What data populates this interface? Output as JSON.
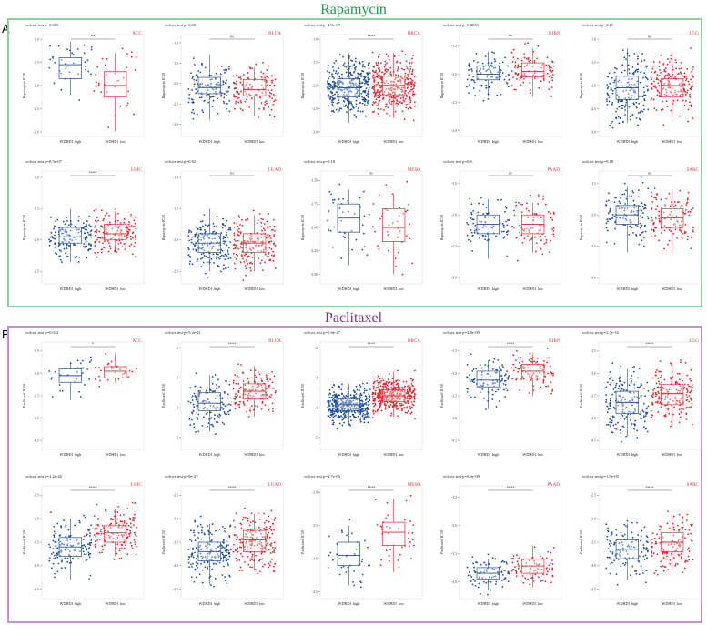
{
  "figure": {
    "panel_a": {
      "letter": "A",
      "title": "Rapamycin",
      "title_color": "#1c9a4a",
      "frame_color": "#8fd19e"
    },
    "panel_b": {
      "letter": "B",
      "title": "Paclitaxel",
      "title_color": "#7b2f8e",
      "frame_color": "#c58fd1"
    }
  },
  "colors": {
    "high": "#1f4e9c",
    "low": "#e3262d",
    "ns_text": "#333333",
    "cancer_label": "#e3262d"
  },
  "groups": [
    "WDHD1 high",
    "WDHD1 low"
  ],
  "chart_data": [
    {
      "type": "box",
      "panel": "A",
      "cancer": "ACC",
      "pvalue": "wilcox.test p=0.009",
      "sig": "**",
      "ylabel": "Rapamycin IC50",
      "yticks": [
        "-1.0",
        "-1.5",
        "-2.0",
        "-2.5",
        "-3.0"
      ],
      "ylim": [
        -3.1,
        -0.9
      ],
      "n": [
        35,
        35
      ],
      "boxes": [
        {
          "q1": -1.85,
          "med": -1.55,
          "q3": -1.4,
          "lo": -2.2,
          "hi": -1.05
        },
        {
          "q1": -2.25,
          "med": -2.0,
          "q3": -1.7,
          "lo": -3.0,
          "hi": -1.3
        }
      ]
    },
    {
      "type": "box",
      "panel": "A",
      "cancer": "BLCA",
      "pvalue": "wilcox.test p=0.68",
      "sig": "ns",
      "ylabel": "Rapamycin IC50",
      "yticks": [
        "-1.0",
        "-1.5",
        "-2.0",
        "-2.5",
        "-3.0"
      ],
      "ylim": [
        -3.3,
        -0.8
      ],
      "n": [
        130,
        130
      ],
      "boxes": [
        {
          "q1": -2.25,
          "med": -2.1,
          "q3": -1.85,
          "lo": -2.9,
          "hi": -1.3
        },
        {
          "q1": -2.3,
          "med": -2.15,
          "q3": -1.9,
          "lo": -2.8,
          "hi": -1.6
        }
      ]
    },
    {
      "type": "box",
      "panel": "A",
      "cancer": "BRCA",
      "pvalue": "wilcox.test p=1.9e-07",
      "sig": "****",
      "ylabel": "Rapamycin IC50",
      "yticks": [
        "-1.0",
        "-1.5",
        "-2.0",
        "-2.5",
        "-3.0"
      ],
      "ylim": [
        -3.1,
        -0.9
      ],
      "n": [
        350,
        350
      ],
      "boxes": [
        {
          "q1": -2.25,
          "med": -2.05,
          "q3": -1.85,
          "lo": -2.8,
          "hi": -1.3
        },
        {
          "q1": -2.2,
          "med": -2.0,
          "q3": -1.8,
          "lo": -2.7,
          "hi": -1.3
        }
      ]
    },
    {
      "type": "box",
      "panel": "A",
      "cancer": "KIRP",
      "pvalue": "wilcox.test p=0.0035",
      "sig": "**",
      "ylabel": "Rapamycin IC50",
      "yticks": [
        "-1.5",
        "-2.0",
        "-2.5",
        "-3.0"
      ],
      "ylim": [
        -3.1,
        -1.3
      ],
      "n": [
        100,
        100
      ],
      "boxes": [
        {
          "q1": -2.1,
          "med": -2.0,
          "q3": -1.85,
          "lo": -2.4,
          "hi": -1.6
        },
        {
          "q1": -2.05,
          "med": -1.95,
          "q3": -1.8,
          "lo": -2.4,
          "hi": -1.55
        }
      ]
    },
    {
      "type": "box",
      "panel": "A",
      "cancer": "LGG",
      "pvalue": "wilcox.test p=0.15",
      "sig": "ns",
      "ylabel": "Rapamycin IC50",
      "yticks": [
        "-1.0",
        "-1.5",
        "-2.0",
        "-2.5",
        "-3.0"
      ],
      "ylim": [
        -3.1,
        -0.9
      ],
      "n": [
        180,
        180
      ],
      "boxes": [
        {
          "q1": -2.3,
          "med": -2.05,
          "q3": -1.8,
          "lo": -2.8,
          "hi": -1.2
        },
        {
          "q1": -2.25,
          "med": -2.0,
          "q3": -1.85,
          "lo": -2.7,
          "hi": -1.3
        }
      ]
    },
    {
      "type": "box",
      "panel": "A",
      "cancer": "LIHC",
      "pvalue": "wilcox.test p=8.5e-07",
      "sig": "****",
      "ylabel": "Rapamycin IC50",
      "yticks": [
        "-1.0",
        "-1.5",
        "-2.0",
        "-2.5"
      ],
      "ylim": [
        -2.7,
        -0.9
      ],
      "n": [
        150,
        150
      ],
      "boxes": [
        {
          "q1": -2.05,
          "med": -1.95,
          "q3": -1.8,
          "lo": -2.35,
          "hi": -1.5
        },
        {
          "q1": -2.0,
          "med": -1.9,
          "q3": -1.75,
          "lo": -2.2,
          "hi": -1.55
        }
      ]
    },
    {
      "type": "box",
      "panel": "A",
      "cancer": "LUAD",
      "pvalue": "wilcox.test p=0.82",
      "sig": "ns",
      "ylabel": "Rapamycin IC50",
      "yticks": [
        "-1.0",
        "-1.5",
        "-2.0",
        "-2.5"
      ],
      "ylim": [
        -2.7,
        -0.9
      ],
      "n": [
        190,
        190
      ],
      "boxes": [
        {
          "q1": -2.2,
          "med": -2.05,
          "q3": -1.9,
          "lo": -2.5,
          "hi": -1.5
        },
        {
          "q1": -2.2,
          "med": -2.05,
          "q3": -1.9,
          "lo": -2.5,
          "hi": -1.6
        }
      ]
    },
    {
      "type": "box",
      "panel": "A",
      "cancer": "MESO",
      "pvalue": "wilcox.test p=0.18",
      "sig": "ns",
      "ylabel": "Rapamycin IC50",
      "yticks": [
        "-1.50",
        "-1.75",
        "-2.00",
        "-2.25",
        "-2.50"
      ],
      "ylim": [
        -2.6,
        -1.4
      ],
      "n": [
        40,
        40
      ],
      "boxes": [
        {
          "q1": -2.05,
          "med": -1.9,
          "q3": -1.75,
          "lo": -2.4,
          "hi": -1.6
        },
        {
          "q1": -2.15,
          "med": -2.0,
          "q3": -1.8,
          "lo": -2.5,
          "hi": -1.65
        }
      ]
    },
    {
      "type": "box",
      "panel": "A",
      "cancer": "PAAD",
      "pvalue": "wilcox.test p=0.6",
      "sig": "ns",
      "ylabel": "Rapamycin IC50",
      "yticks": [
        "-1.5",
        "-2.0",
        "-2.5",
        "-3.0"
      ],
      "ylim": [
        -3.1,
        -1.3
      ],
      "n": [
        85,
        85
      ],
      "boxes": [
        {
          "q1": -2.3,
          "med": -2.15,
          "q3": -2.0,
          "lo": -2.7,
          "hi": -1.75
        },
        {
          "q1": -2.3,
          "med": -2.15,
          "q3": -2.0,
          "lo": -2.6,
          "hi": -1.8
        }
      ]
    },
    {
      "type": "box",
      "panel": "A",
      "cancer": "SARC",
      "pvalue": "wilcox.test p=0.18",
      "sig": "ns",
      "ylabel": "Rapamycin IC50",
      "yticks": [
        "-1.5",
        "-2.0",
        "-2.5",
        "-3.0"
      ],
      "ylim": [
        -3.1,
        -1.3
      ],
      "n": [
        125,
        125
      ],
      "boxes": [
        {
          "q1": -2.15,
          "med": -2.0,
          "q3": -1.85,
          "lo": -2.6,
          "hi": -1.55
        },
        {
          "q1": -2.2,
          "med": -2.05,
          "q3": -1.9,
          "lo": -2.6,
          "hi": -1.6
        }
      ]
    },
    {
      "type": "box",
      "panel": "B",
      "cancer": "ACC",
      "pvalue": "wilcox.test p=0.032",
      "sig": "*",
      "ylabel": "Paclitaxel IC50",
      "yticks": [
        "-2.5",
        "-3.0",
        "-3.5",
        "-4.0",
        "-4.5"
      ],
      "ylim": [
        -4.7,
        -2.3
      ],
      "n": [
        30,
        30
      ],
      "boxes": [
        {
          "q1": -3.2,
          "med": -3.05,
          "q3": -2.9,
          "lo": -3.6,
          "hi": -2.75
        },
        {
          "q1": -3.1,
          "med": -2.95,
          "q3": -2.85,
          "lo": -3.2,
          "hi": -2.55
        }
      ]
    },
    {
      "type": "box",
      "panel": "B",
      "cancer": "BLCA",
      "pvalue": "wilcox.test p=5.2e-21",
      "sig": "****",
      "ylabel": "Paclitaxel IC50",
      "yticks": [
        "-2",
        "-3",
        "-4",
        "-5"
      ],
      "ylim": [
        -5.4,
        -1.8
      ],
      "n": [
        140,
        140
      ],
      "boxes": [
        {
          "q1": -4.1,
          "med": -3.85,
          "q3": -3.5,
          "lo": -4.8,
          "hi": -2.9
        },
        {
          "q1": -3.7,
          "med": -3.45,
          "q3": -3.2,
          "lo": -4.3,
          "hi": -2.6
        }
      ]
    },
    {
      "type": "box",
      "panel": "B",
      "cancer": "BRCA",
      "pvalue": "wilcox.test p=5.6e-47",
      "sig": "****",
      "ylabel": "Paclitaxel IC50",
      "yticks": [
        "-2",
        "-3",
        "-4",
        "-5"
      ],
      "ylim": [
        -5.4,
        -1.8
      ],
      "n": [
        380,
        380
      ],
      "boxes": [
        {
          "q1": -4.1,
          "med": -3.9,
          "q3": -3.7,
          "lo": -4.6,
          "hi": -3.2
        },
        {
          "q1": -3.8,
          "med": -3.6,
          "q3": -3.4,
          "lo": -4.3,
          "hi": -2.8
        }
      ]
    },
    {
      "type": "box",
      "panel": "B",
      "cancer": "KIRP",
      "pvalue": "wilcox.test p=2.8e-09",
      "sig": "****",
      "ylabel": "Paclitaxel IC50",
      "yticks": [
        "-2.5",
        "-3.0",
        "-3.5",
        "-4.0",
        "-4.5"
      ],
      "ylim": [
        -4.7,
        -2.3
      ],
      "n": [
        100,
        100
      ],
      "boxes": [
        {
          "q1": -3.3,
          "med": -3.15,
          "q3": -2.95,
          "lo": -3.8,
          "hi": -2.7
        },
        {
          "q1": -3.1,
          "med": -2.95,
          "q3": -2.8,
          "lo": -3.5,
          "hi": -2.55
        }
      ]
    },
    {
      "type": "box",
      "panel": "B",
      "cancer": "LGG",
      "pvalue": "wilcox.test p=2.7e-16",
      "sig": "****",
      "ylabel": "Paclitaxel IC50",
      "yticks": [
        "-2.5",
        "-3.0",
        "-3.5",
        "-4.0",
        "-4.5"
      ],
      "ylim": [
        -4.7,
        -2.3
      ],
      "n": [
        180,
        180
      ],
      "boxes": [
        {
          "q1": -3.9,
          "med": -3.65,
          "q3": -3.4,
          "lo": -4.4,
          "hi": -2.9
        },
        {
          "q1": -3.7,
          "med": -3.45,
          "q3": -3.25,
          "lo": -4.2,
          "hi": -2.75
        }
      ]
    },
    {
      "type": "box",
      "panel": "B",
      "cancer": "LIHC",
      "pvalue": "wilcox.test p=1.2e-26",
      "sig": "****",
      "ylabel": "Paclitaxel IC50",
      "yticks": [
        "-2.5",
        "-3.0",
        "-3.5",
        "-4.0",
        "-4.5"
      ],
      "ylim": [
        -4.7,
        -2.3
      ],
      "n": [
        140,
        140
      ],
      "boxes": [
        {
          "q1": -3.8,
          "med": -3.6,
          "q3": -3.4,
          "lo": -4.3,
          "hi": -3.0
        },
        {
          "q1": -3.5,
          "med": -3.3,
          "q3": -3.15,
          "lo": -3.8,
          "hi": -2.8
        }
      ]
    },
    {
      "type": "box",
      "panel": "B",
      "cancer": "LUAD",
      "pvalue": "wilcox.test p=9e-27",
      "sig": "****",
      "ylabel": "Paclitaxel IC50",
      "yticks": [
        "-2.5",
        "-3.0",
        "-3.5",
        "-4.0",
        "-4.5"
      ],
      "ylim": [
        -4.7,
        -2.3
      ],
      "n": [
        190,
        190
      ],
      "boxes": [
        {
          "q1": -3.9,
          "med": -3.7,
          "q3": -3.5,
          "lo": -4.4,
          "hi": -3.1
        },
        {
          "q1": -3.7,
          "med": -3.45,
          "q3": -3.25,
          "lo": -4.1,
          "hi": -2.9
        }
      ]
    },
    {
      "type": "box",
      "panel": "B",
      "cancer": "MESO",
      "pvalue": "wilcox.test p=2.7e-06",
      "sig": "****",
      "ylabel": "Paclitaxel IC50",
      "yticks": [
        "-3.0",
        "-3.5",
        "-4.0",
        "-4.5"
      ],
      "ylim": [
        -4.6,
        -2.9
      ],
      "n": [
        40,
        40
      ],
      "boxes": [
        {
          "q1": -4.1,
          "med": -3.95,
          "q3": -3.75,
          "lo": -4.4,
          "hi": -3.5
        },
        {
          "q1": -3.8,
          "med": -3.6,
          "q3": -3.45,
          "lo": -4.2,
          "hi": -3.1
        }
      ]
    },
    {
      "type": "box",
      "panel": "B",
      "cancer": "PAAD",
      "pvalue": "wilcox.test p=6.4e-09",
      "sig": "****",
      "ylabel": "Paclitaxel IC50",
      "yticks": [
        "-2.5",
        "-3.0",
        "-3.5",
        "-4.0"
      ],
      "ylim": [
        -4.3,
        -2.3
      ],
      "n": [
        80,
        80
      ],
      "boxes": [
        {
          "q1": -3.95,
          "med": -3.85,
          "q3": -3.75,
          "lo": -4.15,
          "hi": -3.6
        },
        {
          "q1": -3.85,
          "med": -3.72,
          "q3": -3.6,
          "lo": -4.1,
          "hi": -3.35
        }
      ]
    },
    {
      "type": "box",
      "panel": "B",
      "cancer": "SARC",
      "pvalue": "wilcox.test p=1.9e-05",
      "sig": "****",
      "ylabel": "Paclitaxel IC50",
      "yticks": [
        "-2.5",
        "-3.0",
        "-3.5",
        "-4.0",
        "-4.5"
      ],
      "ylim": [
        -4.7,
        -2.3
      ],
      "n": [
        125,
        125
      ],
      "boxes": [
        {
          "q1": -3.85,
          "med": -3.65,
          "q3": -3.45,
          "lo": -4.3,
          "hi": -3.1
        },
        {
          "q1": -3.7,
          "med": -3.5,
          "q3": -3.3,
          "lo": -4.1,
          "hi": -2.9
        }
      ]
    }
  ]
}
